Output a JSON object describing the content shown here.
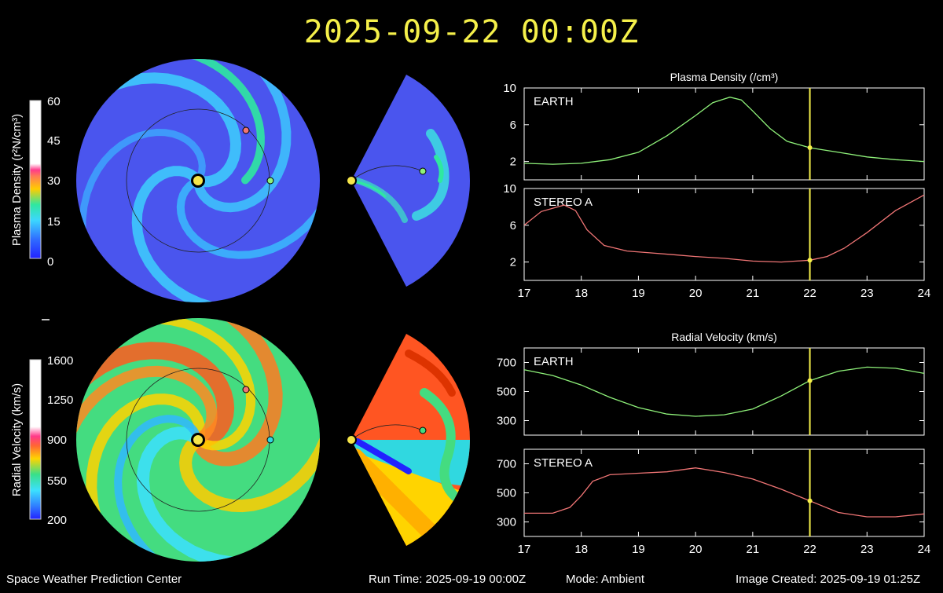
{
  "title": "2025-09-22  00:00Z",
  "footer": {
    "center": "Space Weather Prediction Center",
    "run_time": "Run Time: 2025-09-19 00:00Z",
    "mode": "Mode: Ambient",
    "image_created": "Image Created: 2025-09-19 01:25Z"
  },
  "colorbars": [
    {
      "label": "Plasma Density (r²N/cm³)",
      "ticks": [
        "60",
        "45",
        "30",
        "15",
        "0"
      ]
    },
    {
      "label": "Radial Velocity (km/s)",
      "ticks": [
        "1600",
        "1250",
        "900",
        "550",
        "200"
      ]
    }
  ],
  "colors": {
    "earth": "#8ff27a",
    "stereo_a": "#f07575",
    "current_time_line": "#f5f04a",
    "title": "#f5f04a"
  },
  "chart_data": [
    {
      "type": "line",
      "title": "Plasma Density (/cm³)",
      "label": "EARTH",
      "x": [
        17,
        17.5,
        18,
        18.5,
        19,
        19.5,
        20,
        20.3,
        20.6,
        20.8,
        21,
        21.3,
        21.6,
        22,
        22.5,
        23,
        23.5,
        24
      ],
      "y": [
        1.8,
        1.7,
        1.8,
        2.2,
        3.0,
        4.8,
        7.0,
        8.4,
        9.0,
        8.7,
        7.5,
        5.6,
        4.2,
        3.5,
        3.0,
        2.5,
        2.2,
        2.0
      ],
      "ylim": [
        0,
        10
      ],
      "yticks": [
        2,
        6,
        10
      ],
      "xticks": [
        "17",
        "18",
        "19",
        "20",
        "21",
        "22",
        "23",
        "24"
      ],
      "xlim": [
        17,
        24
      ],
      "marker_x": 22,
      "color": "#8ff27a"
    },
    {
      "type": "line",
      "label": "STEREO A",
      "x": [
        17,
        17.3,
        17.7,
        17.9,
        18.1,
        18.4,
        18.8,
        19.2,
        19.6,
        20,
        20.5,
        21,
        21.5,
        22,
        22.3,
        22.6,
        23,
        23.5,
        24
      ],
      "y": [
        6.0,
        7.5,
        8.2,
        7.6,
        5.5,
        3.8,
        3.2,
        3.0,
        2.8,
        2.6,
        2.4,
        2.1,
        2.0,
        2.2,
        2.6,
        3.5,
        5.2,
        7.6,
        9.3
      ],
      "ylim": [
        0,
        10
      ],
      "yticks": [
        2,
        6,
        10
      ],
      "xticks": [
        "17",
        "18",
        "19",
        "20",
        "21",
        "22",
        "23",
        "24"
      ],
      "xlim": [
        17,
        24
      ],
      "marker_x": 22,
      "color": "#f07575"
    },
    {
      "type": "line",
      "title": "Radial Velocity (km/s)",
      "label": "EARTH",
      "x": [
        17,
        17.5,
        18,
        18.5,
        19,
        19.5,
        20,
        20.5,
        21,
        21.5,
        22,
        22.5,
        23,
        23.5,
        24
      ],
      "y": [
        650,
        610,
        545,
        460,
        390,
        345,
        330,
        340,
        380,
        470,
        575,
        640,
        668,
        660,
        625
      ],
      "ylim": [
        200,
        800
      ],
      "yticks": [
        300,
        500,
        700
      ],
      "xticks": [
        "17",
        "18",
        "19",
        "20",
        "21",
        "22",
        "23",
        "24"
      ],
      "xlim": [
        17,
        24
      ],
      "marker_x": 22,
      "color": "#8ff27a"
    },
    {
      "type": "line",
      "label": "STEREO A",
      "x": [
        17,
        17.5,
        17.8,
        18,
        18.2,
        18.5,
        19,
        19.5,
        20,
        20.5,
        21,
        21.5,
        22,
        22.5,
        23,
        23.5,
        24
      ],
      "y": [
        360,
        360,
        400,
        480,
        580,
        625,
        635,
        645,
        672,
        640,
        595,
        525,
        445,
        365,
        335,
        335,
        355
      ],
      "ylim": [
        200,
        800
      ],
      "yticks": [
        300,
        500,
        700
      ],
      "xticks": [
        "17",
        "18",
        "19",
        "20",
        "21",
        "22",
        "23",
        "24"
      ],
      "xlim": [
        17,
        24
      ],
      "marker_x": 22,
      "color": "#f07575"
    }
  ]
}
